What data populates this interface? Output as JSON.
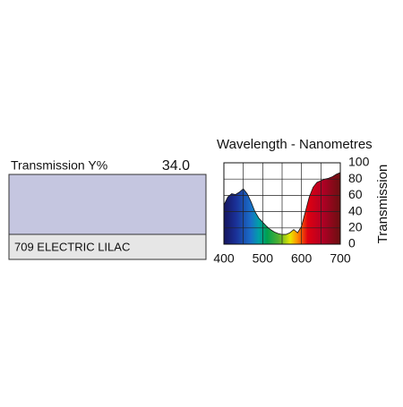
{
  "swatch": {
    "transmission_label": "Transmission Y%",
    "transmission_value": "34.0",
    "name": "709 ELECTRIC LILAC",
    "color": "#c5c6e0"
  },
  "chart_data": {
    "type": "area",
    "title": "Wavelength - Nanometres",
    "y_label": "Transmission",
    "x": [
      400,
      410,
      420,
      430,
      440,
      450,
      460,
      470,
      480,
      490,
      500,
      510,
      520,
      530,
      540,
      550,
      560,
      570,
      580,
      590,
      600,
      610,
      620,
      630,
      640,
      650,
      660,
      670,
      680,
      690,
      700
    ],
    "values": [
      48,
      58,
      62,
      61,
      64,
      68,
      62,
      52,
      40,
      32,
      27,
      22,
      18,
      15,
      13,
      12,
      12,
      14,
      18,
      14,
      22,
      40,
      58,
      70,
      76,
      78,
      80,
      81,
      83,
      86,
      88
    ],
    "xlim": [
      400,
      700
    ],
    "xticks": [
      400,
      500,
      600,
      700
    ],
    "ylim": [
      0,
      100
    ],
    "yticks": [
      0,
      20,
      40,
      60,
      80,
      100
    ],
    "grid": true
  }
}
